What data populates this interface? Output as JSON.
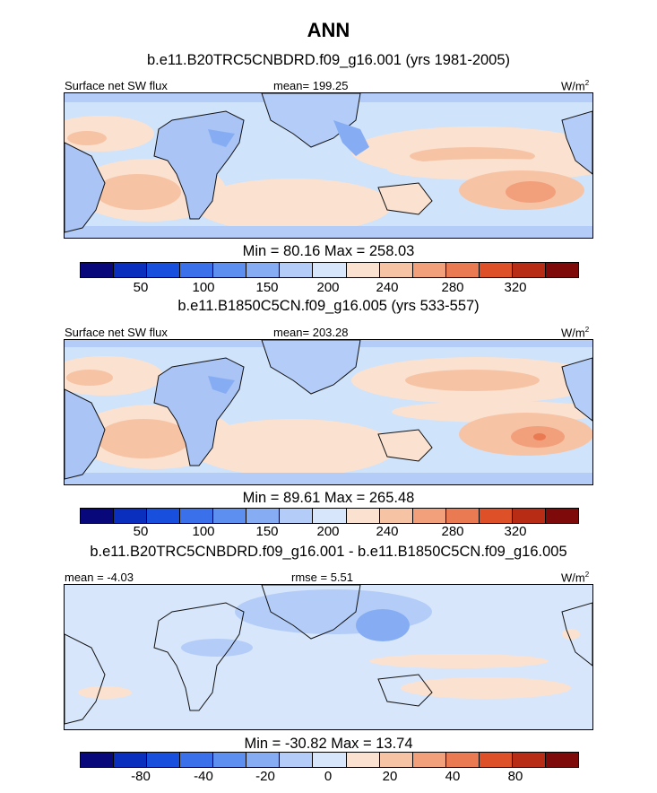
{
  "season": "ANN",
  "panels": [
    {
      "case_label": "b.e11.B20TRC5CNBDRD.f09_g16.001 (yrs 1981-2005)",
      "left_label": "Surface net SW flux",
      "center_label": "mean= 199.25",
      "units": "W/m",
      "units_sup": "2",
      "min_max": "Min =  80.16 Max = 258.03",
      "colorbar_ticks": [
        "50",
        "100",
        "150",
        "200",
        "240",
        "280",
        "320"
      ]
    },
    {
      "case_label": "b.e11.B1850C5CN.f09_g16.005 (yrs 533-557)",
      "left_label": "Surface net SW flux",
      "center_label": "mean= 203.28",
      "units": "W/m",
      "units_sup": "2",
      "min_max": "Min =  89.61 Max = 265.48",
      "colorbar_ticks": [
        "50",
        "100",
        "150",
        "200",
        "240",
        "280",
        "320"
      ]
    },
    {
      "case_label": "b.e11.B20TRC5CNBDRD.f09_g16.001 - b.e11.B1850C5CN.f09_g16.005",
      "left_label": "mean =  -4.03",
      "center_label": "rmse =   5.51",
      "units": "W/m",
      "units_sup": "2",
      "min_max": "Min = -30.82 Max =  13.74",
      "colorbar_ticks": [
        "-80",
        "-40",
        "-20",
        "0",
        "20",
        "40",
        "80"
      ]
    }
  ],
  "colorbar_colors": [
    "#08087a",
    "#0a2fbf",
    "#1850dd",
    "#3a70ea",
    "#5d8ff0",
    "#86adf4",
    "#b4cdf8",
    "#d7e6fb",
    "#fbe2d0",
    "#f7c3a5",
    "#f2a07c",
    "#ea7a52",
    "#dd5028",
    "#b82b14",
    "#7f0a0a"
  ],
  "chart_data": [
    {
      "type": "heatmap",
      "title": "ANN",
      "subtitle": "b.e11.B20TRC5CNBDRD.f09_g16.001 (yrs 1981-2005)",
      "variable": "Surface net SW flux",
      "units": "W/m2",
      "mean": 199.25,
      "min": 80.16,
      "max": 258.03,
      "colorbar_levels": [
        50,
        100,
        150,
        200,
        240,
        280,
        320
      ]
    },
    {
      "type": "heatmap",
      "subtitle": "b.e11.B1850C5CN.f09_g16.005 (yrs 533-557)",
      "variable": "Surface net SW flux",
      "units": "W/m2",
      "mean": 203.28,
      "min": 89.61,
      "max": 265.48,
      "colorbar_levels": [
        50,
        100,
        150,
        200,
        240,
        280,
        320
      ]
    },
    {
      "type": "heatmap",
      "subtitle": "b.e11.B20TRC5CNBDRD.f09_g16.001 - b.e11.B1850C5CN.f09_g16.005",
      "units": "W/m2",
      "mean": -4.03,
      "rmse": 5.51,
      "min": -30.82,
      "max": 13.74,
      "colorbar_levels": [
        -80,
        -40,
        -20,
        0,
        20,
        40,
        80
      ]
    }
  ]
}
